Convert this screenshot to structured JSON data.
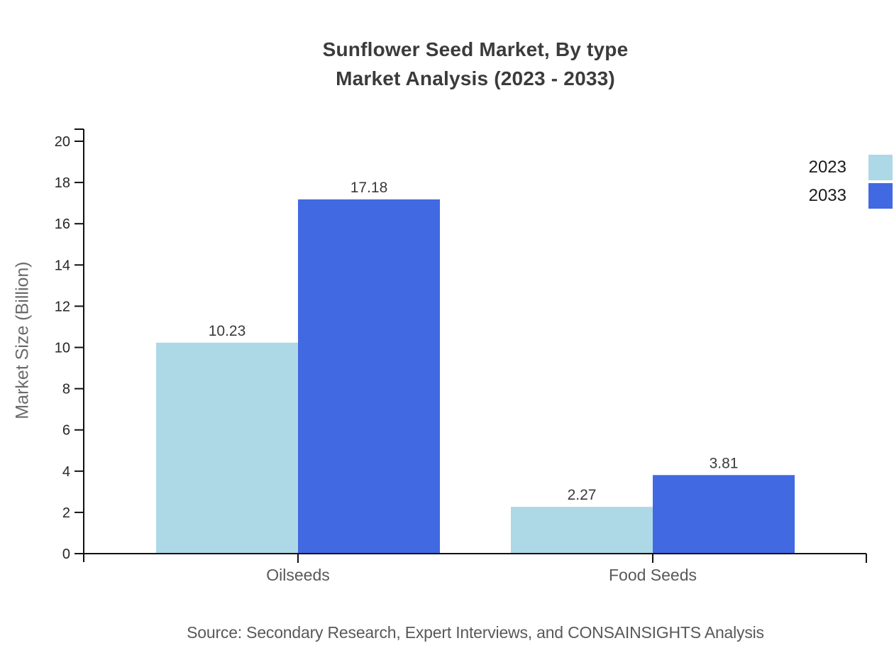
{
  "title": {
    "line1": "Sunflower Seed Market, By type",
    "line2": "Market Analysis (2023 - 2033)"
  },
  "chart_data": {
    "type": "bar",
    "categories": [
      "Oilseeds",
      "Food Seeds"
    ],
    "series": [
      {
        "name": "2023",
        "color": "#ADD8E6",
        "values": [
          10.23,
          2.27
        ]
      },
      {
        "name": "2033",
        "color": "#4169E1",
        "values": [
          17.18,
          3.81
        ]
      }
    ],
    "title": "Sunflower Seed Market, By type Market Analysis (2023 - 2033)",
    "xlabel": "",
    "ylabel": "Market Size (Billion)",
    "ylim": [
      0,
      20.6
    ],
    "yticks": [
      0,
      2,
      4,
      6,
      8,
      10,
      12,
      14,
      16,
      18,
      20
    ],
    "grid": false,
    "legend_position": "top-right",
    "value_labels": [
      "10.23",
      "17.18",
      "2.27",
      "3.81"
    ]
  },
  "source": "Source: Secondary Research, Expert Interviews, and CONSAINSIGHTS Analysis",
  "colors": {
    "axis_line": "#111111",
    "tick_text": "#262626",
    "value_label_text": "#3a3a3a",
    "category_text": "#595959",
    "title_text": "#3b3b3b",
    "source_text": "#595959"
  }
}
